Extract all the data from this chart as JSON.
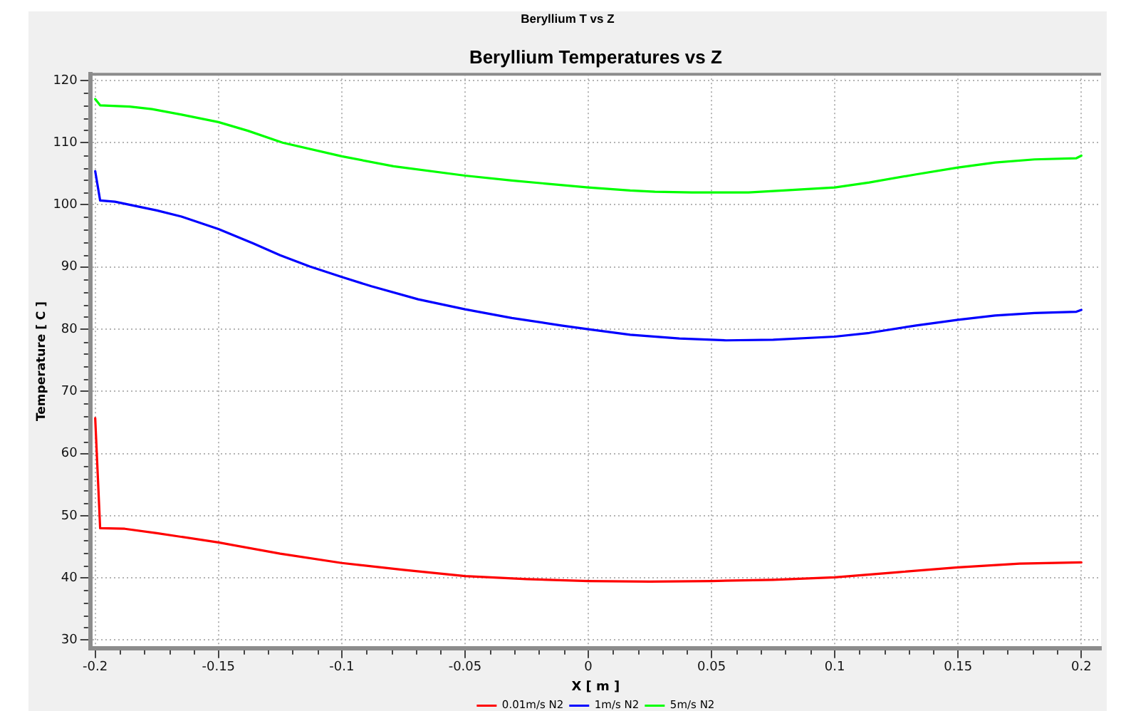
{
  "chart_data": {
    "type": "line",
    "title": "Beryllium Temperatures vs Z",
    "xlabel": "X [ m ]",
    "ylabel": "Temperature [ C ]",
    "annotations": [
      "Beryllium T vs Z"
    ],
    "series": [
      {
        "name": "0.01m/s N2",
        "color": "#ff0000",
        "x": [
          -0.2,
          -0.198,
          -0.188,
          -0.175,
          -0.15,
          -0.125,
          -0.1,
          -0.075,
          -0.05,
          -0.025,
          0,
          0.025,
          0.05,
          0.075,
          0.1,
          0.125,
          0.15,
          0.175,
          0.2
        ],
        "values": [
          65.7,
          48.0,
          47.9,
          47.2,
          45.7,
          43.9,
          42.4,
          41.3,
          40.3,
          39.8,
          39.5,
          39.4,
          39.5,
          39.7,
          40.1,
          40.9,
          41.7,
          42.3,
          42.5
        ]
      },
      {
        "name": "1m/s N2",
        "color": "#0000ff",
        "x": [
          -0.2,
          -0.198,
          -0.192,
          -0.175,
          -0.165,
          -0.15,
          -0.136,
          -0.125,
          -0.113,
          -0.1,
          -0.088,
          -0.069,
          -0.05,
          -0.031,
          -0.011,
          0,
          0.017,
          0.037,
          0.05,
          0.056,
          0.075,
          0.1,
          0.114,
          0.133,
          0.15,
          0.165,
          0.181,
          0.198,
          0.2
        ],
        "values": [
          105.4,
          100.7,
          100.5,
          99.1,
          98.1,
          96.1,
          93.8,
          91.9,
          90.1,
          88.4,
          86.9,
          84.8,
          83.2,
          81.8,
          80.6,
          80.0,
          79.1,
          78.5,
          78.3,
          78.2,
          78.3,
          78.8,
          79.4,
          80.6,
          81.5,
          82.2,
          82.6,
          82.8,
          83.1
        ]
      },
      {
        "name": "5m/s N2",
        "color": "#00ff00",
        "x": [
          -0.2,
          -0.198,
          -0.186,
          -0.177,
          -0.165,
          -0.15,
          -0.138,
          -0.124,
          -0.1,
          -0.079,
          -0.05,
          -0.031,
          0,
          0.017,
          0.027,
          0.042,
          0.065,
          0.079,
          0.1,
          0.114,
          0.133,
          0.15,
          0.165,
          0.181,
          0.198,
          0.2
        ],
        "values": [
          117.0,
          116.0,
          115.8,
          115.4,
          114.5,
          113.3,
          111.9,
          110.0,
          107.8,
          106.2,
          104.7,
          103.9,
          102.8,
          102.3,
          102.1,
          102.0,
          102.0,
          102.3,
          102.8,
          103.6,
          104.9,
          106.0,
          106.8,
          107.3,
          107.5,
          107.9
        ]
      }
    ],
    "xlim": [
      -0.202,
      0.208
    ],
    "ylim": [
      28.7,
      121
    ],
    "xticks": [
      -0.2,
      {
        "value": -0.19,
        "label": null
      },
      {
        "value": -0.18,
        "label": null
      },
      {
        "value": -0.17,
        "label": null
      },
      {
        "value": -0.16,
        "label": null
      },
      -0.15,
      {
        "value": -0.14,
        "label": null
      },
      {
        "value": -0.13,
        "label": null
      },
      {
        "value": -0.12,
        "label": null
      },
      {
        "value": -0.11,
        "label": null
      },
      -0.1,
      {
        "value": -0.09,
        "label": null
      },
      {
        "value": -0.08,
        "label": null
      },
      {
        "value": -0.07,
        "label": null
      },
      {
        "value": -0.06,
        "label": null
      },
      -0.05,
      {
        "value": -0.04,
        "label": null
      },
      {
        "value": -0.03,
        "label": null
      },
      {
        "value": -0.02,
        "label": null
      },
      {
        "value": -0.01,
        "label": null
      },
      0,
      {
        "value": 0.01,
        "label": null
      },
      {
        "value": 0.02,
        "label": null
      },
      {
        "value": 0.03,
        "label": null
      },
      {
        "value": 0.04,
        "label": null
      },
      0.05,
      {
        "value": 0.06,
        "label": null
      },
      {
        "value": 0.07,
        "label": null
      },
      {
        "value": 0.08,
        "label": null
      },
      {
        "value": 0.09,
        "label": null
      },
      0.1,
      {
        "value": 0.11,
        "label": null
      },
      {
        "value": 0.12,
        "label": null
      },
      {
        "value": 0.13,
        "label": null
      },
      {
        "value": 0.14,
        "label": null
      },
      0.15,
      {
        "value": 0.16,
        "label": null
      },
      {
        "value": 0.17,
        "label": null
      },
      {
        "value": 0.18,
        "label": null
      },
      {
        "value": 0.19,
        "label": null
      },
      0.2
    ],
    "yticks": [
      30,
      {
        "value": 32,
        "label": null
      },
      {
        "value": 34,
        "label": null
      },
      {
        "value": 36,
        "label": null
      },
      {
        "value": 38,
        "label": null
      },
      40,
      {
        "value": 42,
        "label": null
      },
      {
        "value": 44,
        "label": null
      },
      {
        "value": 46,
        "label": null
      },
      {
        "value": 48,
        "label": null
      },
      50,
      {
        "value": 52,
        "label": null
      },
      {
        "value": 54,
        "label": null
      },
      {
        "value": 56,
        "label": null
      },
      {
        "value": 58,
        "label": null
      },
      60,
      {
        "value": 62,
        "label": null
      },
      {
        "value": 64,
        "label": null
      },
      {
        "value": 66,
        "label": null
      },
      {
        "value": 68,
        "label": null
      },
      70,
      {
        "value": 72,
        "label": null
      },
      {
        "value": 74,
        "label": null
      },
      {
        "value": 76,
        "label": null
      },
      {
        "value": 78,
        "label": null
      },
      80,
      {
        "value": 82,
        "label": null
      },
      {
        "value": 84,
        "label": null
      },
      {
        "value": 86,
        "label": null
      },
      {
        "value": 88,
        "label": null
      },
      90,
      {
        "value": 92,
        "label": null
      },
      {
        "value": 94,
        "label": null
      },
      {
        "value": 96,
        "label": null
      },
      {
        "value": 98,
        "label": null
      },
      100,
      {
        "value": 102,
        "label": null
      },
      {
        "value": 104,
        "label": null
      },
      {
        "value": 106,
        "label": null
      },
      {
        "value": 108,
        "label": null
      },
      110,
      {
        "value": 112,
        "label": null
      },
      {
        "value": 114,
        "label": null
      },
      {
        "value": 116,
        "label": null
      },
      {
        "value": 118,
        "label": null
      },
      120
    ],
    "grid": true,
    "legend": "bottom",
    "marker": "none",
    "line_style": "solid"
  }
}
